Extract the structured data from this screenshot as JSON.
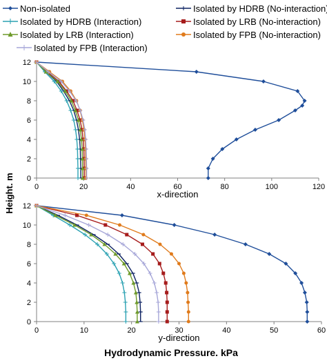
{
  "chart_data": [
    {
      "type": "line",
      "xlabel": "x-direction",
      "ylabel": "Height. m",
      "xlim": [
        0,
        120
      ],
      "ylim": [
        0,
        12
      ],
      "xticks": [
        0,
        20,
        40,
        60,
        80,
        100,
        120
      ],
      "yticks": [
        0,
        2,
        4,
        6,
        8,
        10,
        12
      ],
      "grid": false,
      "series": [
        {
          "name": "Non-isolated",
          "color": "#1f4e9a",
          "marker": "diamond",
          "x": [
            0,
            68,
            96.5,
            111,
            114,
            113,
            110,
            103,
            93,
            85,
            79,
            75,
            73,
            73
          ],
          "y": [
            12,
            11,
            10,
            9,
            8,
            7.5,
            7,
            6,
            5,
            4,
            3,
            2,
            1,
            0
          ]
        },
        {
          "name": "Isolated by HDRB (No-interaction)",
          "color": "#0b2060",
          "marker": "dash",
          "x": [
            0,
            4,
            8.5,
            11.5,
            14,
            15.8,
            17,
            17.8,
            18.3,
            18.6,
            18.7,
            18.8,
            18.8
          ],
          "y": [
            12,
            11,
            10,
            9,
            8,
            7,
            6,
            5,
            4,
            3,
            2,
            1,
            0
          ]
        },
        {
          "name": "Isolated by HDRB (Interaction)",
          "color": "#2aa1b2",
          "marker": "plus",
          "x": [
            0,
            3.5,
            7.5,
            10.5,
            12.8,
            14.5,
            15.8,
            16.6,
            17.1,
            17.4,
            17.5,
            17.6,
            17.6
          ],
          "y": [
            12,
            11,
            10,
            9,
            8,
            7,
            6,
            5,
            4,
            3,
            2,
            1,
            0
          ]
        },
        {
          "name": "Isolated by LRB (No-interaction)",
          "color": "#a61c1c",
          "marker": "square",
          "x": [
            0,
            4.5,
            9.5,
            12.8,
            15.5,
            17.2,
            18.5,
            19.3,
            19.8,
            20.1,
            20.2,
            20.3,
            20.3
          ],
          "y": [
            12,
            11,
            10,
            9,
            8,
            7,
            6,
            5,
            4,
            3,
            2,
            1,
            0
          ]
        },
        {
          "name": "Isolated by LRB (Interaction)",
          "color": "#6e9a2a",
          "marker": "triangle",
          "x": [
            0,
            4,
            9,
            12.2,
            14.8,
            16.5,
            17.8,
            18.6,
            19.1,
            19.4,
            19.5,
            19.6,
            19.6
          ],
          "y": [
            12,
            11,
            10,
            9,
            8,
            7,
            6,
            5,
            4,
            3,
            2,
            1,
            0
          ]
        },
        {
          "name": "Isolated by FPB (No-interaction)",
          "color": "#e07b1c",
          "marker": "circle",
          "x": [
            0,
            5.5,
            11,
            14.5,
            17,
            18.5,
            19.5,
            20.2,
            20.6,
            20.8,
            20.9,
            21,
            21
          ],
          "y": [
            12,
            11,
            10,
            9,
            8,
            7,
            6,
            5,
            4,
            3,
            2,
            1,
            0
          ]
        },
        {
          "name": "Isolated by FPB (Interaction)",
          "color": "#a6a6d8",
          "marker": "plus",
          "x": [
            0,
            5,
            10.5,
            14,
            16.8,
            18.6,
            19.8,
            20.5,
            20.9,
            21.1,
            21.2,
            21.3,
            21.3
          ],
          "y": [
            12,
            11,
            10,
            9,
            8,
            7,
            6,
            5,
            4,
            3,
            2,
            1,
            0
          ]
        }
      ]
    },
    {
      "type": "line",
      "xlabel": "y-direction",
      "ylabel": "Height. m",
      "figure_xlabel": "Hydrodynamic Pressure. kPa",
      "xlim": [
        0,
        60
      ],
      "ylim": [
        0,
        12
      ],
      "xticks": [
        0,
        10,
        20,
        30,
        40,
        50,
        60
      ],
      "yticks": [
        0,
        2,
        4,
        6,
        8,
        10,
        12
      ],
      "grid": false,
      "series": [
        {
          "name": "Non-isolated",
          "color": "#1f4e9a",
          "marker": "diamond",
          "x": [
            0,
            18,
            29,
            37.5,
            44,
            49,
            52.5,
            54.5,
            55.8,
            56.5,
            56.9,
            57,
            57
          ],
          "y": [
            12,
            11,
            10,
            9,
            8,
            7,
            6,
            5,
            4,
            3,
            2,
            1,
            0
          ]
        },
        {
          "name": "Isolated by HDRB (No-interaction)",
          "color": "#0b2060",
          "marker": "dash",
          "x": [
            0,
            4.5,
            8.5,
            12,
            15,
            17.3,
            19,
            20.3,
            21.1,
            21.6,
            21.8,
            21.9,
            21.9
          ],
          "y": [
            12,
            11,
            10,
            9,
            8,
            7,
            6,
            5,
            4,
            3,
            2,
            1,
            0
          ]
        },
        {
          "name": "Isolated by HDRB (Interaction)",
          "color": "#2aa1b2",
          "marker": "plus",
          "x": [
            0,
            3.5,
            7,
            10.2,
            12.8,
            14.8,
            16.3,
            17.4,
            18.1,
            18.5,
            18.7,
            18.8,
            18.8
          ],
          "y": [
            12,
            11,
            10,
            9,
            8,
            7,
            6,
            5,
            4,
            3,
            2,
            1,
            0
          ]
        },
        {
          "name": "Isolated by LRB (No-interaction)",
          "color": "#a61c1c",
          "marker": "square",
          "x": [
            0,
            8.5,
            14.5,
            19,
            22.3,
            24.5,
            25.9,
            26.7,
            27.2,
            27.4,
            27.5,
            27.5,
            27.5
          ],
          "y": [
            12,
            11,
            10,
            9,
            8,
            7,
            6,
            5,
            4,
            3,
            2,
            1,
            0
          ]
        },
        {
          "name": "Isolated by LRB (Interaction)",
          "color": "#6e9a2a",
          "marker": "triangle",
          "x": [
            0,
            4,
            8,
            11.5,
            14.3,
            16.6,
            18.4,
            19.6,
            20.4,
            20.9,
            21.1,
            21.2,
            21.2
          ],
          "y": [
            12,
            11,
            10,
            9,
            8,
            7,
            6,
            5,
            4,
            3,
            2,
            1,
            0
          ]
        },
        {
          "name": "Isolated by FPB (No-interaction)",
          "color": "#e07b1c",
          "marker": "circle",
          "x": [
            0,
            10.5,
            17.5,
            22.5,
            26,
            28.4,
            30,
            31,
            31.5,
            31.8,
            31.9,
            32,
            32
          ],
          "y": [
            12,
            11,
            10,
            9,
            8,
            7,
            6,
            5,
            4,
            3,
            2,
            1,
            0
          ]
        },
        {
          "name": "Isolated by FPB (Interaction)",
          "color": "#a6a6d8",
          "marker": "plus",
          "x": [
            0,
            6,
            11,
            15,
            18.2,
            20.7,
            22.6,
            23.9,
            24.8,
            25.3,
            25.6,
            25.7,
            25.7
          ],
          "y": [
            12,
            11,
            10,
            9,
            8,
            7,
            6,
            5,
            4,
            3,
            2,
            1,
            0
          ]
        }
      ]
    }
  ]
}
